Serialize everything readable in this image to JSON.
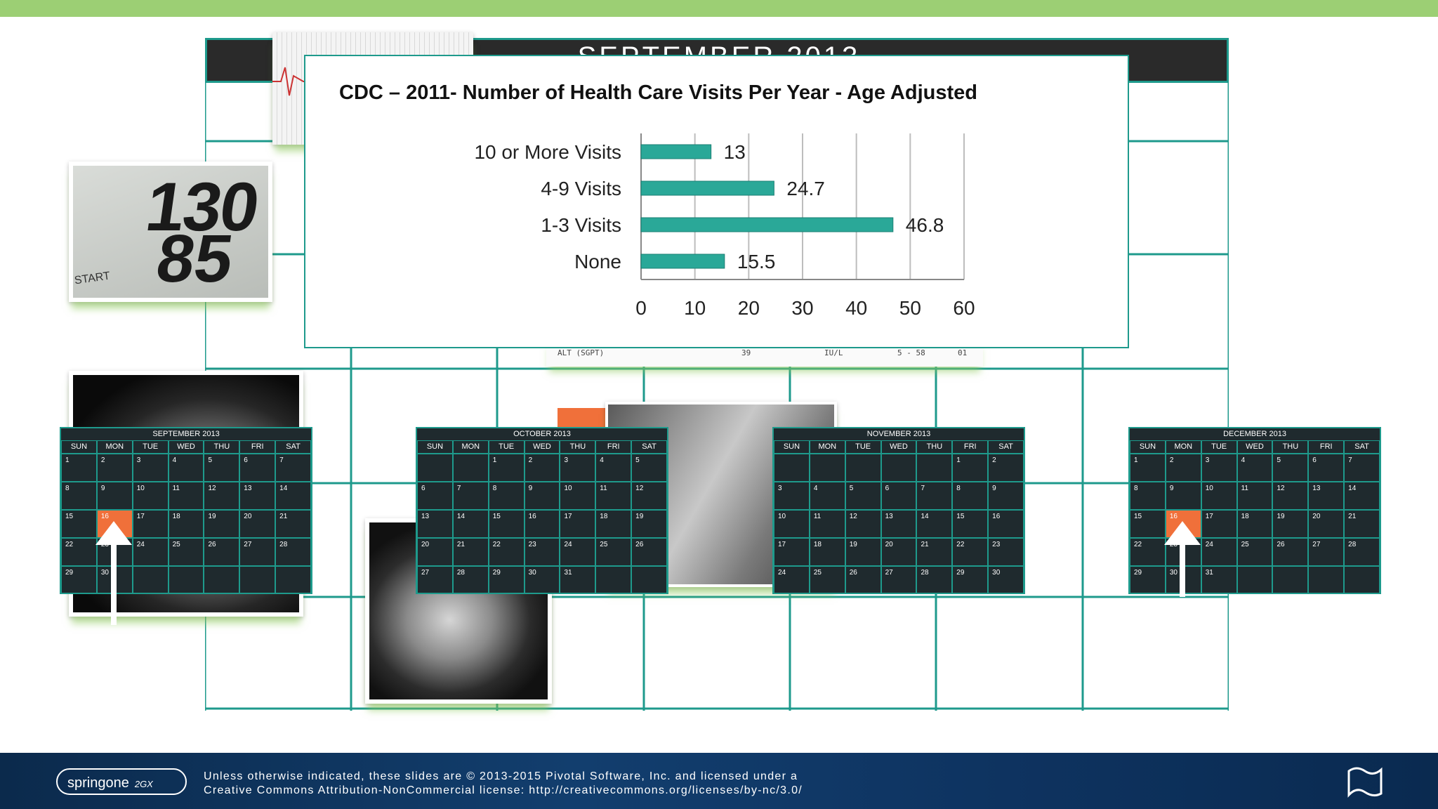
{
  "background_calendar": {
    "title": "SEPTEMBER 2013",
    "highlight_day": "16"
  },
  "chart_data": {
    "type": "bar",
    "orientation": "horizontal",
    "title": "CDC – 2011- Number of Health Care Visits Per Year - Age Adjusted",
    "categories": [
      "10 or More Visits",
      "4-9 Visits",
      "1-3 Visits",
      "None"
    ],
    "values": [
      13,
      24.7,
      46.8,
      15.5
    ],
    "value_labels": [
      "13",
      "24.7",
      "46.8",
      "15.5"
    ],
    "xlim": [
      0,
      60
    ],
    "x_ticks": [
      "0",
      "10",
      "20",
      "30",
      "40",
      "50",
      "60"
    ],
    "bar_color": "#2aa898",
    "grid": true
  },
  "photos": {
    "bp_systolic": "130",
    "bp_diastolic": "85",
    "bp_label": "START"
  },
  "lab_sheet": {
    "row": [
      "ALT (SGPT)",
      "39",
      "IU/L",
      "5 - 58",
      "01"
    ]
  },
  "mini_calendars": [
    {
      "title": "SEPTEMBER 2013",
      "days": [
        "SUN",
        "MON",
        "TUE",
        "WED",
        "THU",
        "FRI",
        "SAT"
      ],
      "rows": [
        [
          "1",
          "2",
          "3",
          "4",
          "5",
          "6",
          "7"
        ],
        [
          "8",
          "9",
          "10",
          "11",
          "12",
          "13",
          "14"
        ],
        [
          "15",
          "16",
          "17",
          "18",
          "19",
          "20",
          "21"
        ],
        [
          "22",
          "23",
          "24",
          "25",
          "26",
          "27",
          "28"
        ],
        [
          "29",
          "30",
          "",
          "",
          "",
          "",
          ""
        ]
      ],
      "highlight": "16"
    },
    {
      "title": "OCTOBER 2013",
      "days": [
        "SUN",
        "MON",
        "TUE",
        "WED",
        "THU",
        "FRI",
        "SAT"
      ],
      "rows": [
        [
          "",
          "",
          "1",
          "2",
          "3",
          "4",
          "5"
        ],
        [
          "6",
          "7",
          "8",
          "9",
          "10",
          "11",
          "12"
        ],
        [
          "13",
          "14",
          "15",
          "16",
          "17",
          "18",
          "19"
        ],
        [
          "20",
          "21",
          "22",
          "23",
          "24",
          "25",
          "26"
        ],
        [
          "27",
          "28",
          "29",
          "30",
          "31",
          "",
          ""
        ]
      ],
      "highlight": ""
    },
    {
      "title": "NOVEMBER 2013",
      "days": [
        "SUN",
        "MON",
        "TUE",
        "WED",
        "THU",
        "FRI",
        "SAT"
      ],
      "rows": [
        [
          "",
          "",
          "",
          "",
          "",
          "1",
          "2"
        ],
        [
          "3",
          "4",
          "5",
          "6",
          "7",
          "8",
          "9"
        ],
        [
          "10",
          "11",
          "12",
          "13",
          "14",
          "15",
          "16"
        ],
        [
          "17",
          "18",
          "19",
          "20",
          "21",
          "22",
          "23"
        ],
        [
          "24",
          "25",
          "26",
          "27",
          "28",
          "29",
          "30"
        ]
      ],
      "highlight": ""
    },
    {
      "title": "DECEMBER 2013",
      "days": [
        "SUN",
        "MON",
        "TUE",
        "WED",
        "THU",
        "FRI",
        "SAT"
      ],
      "rows": [
        [
          "1",
          "2",
          "3",
          "4",
          "5",
          "6",
          "7"
        ],
        [
          "8",
          "9",
          "10",
          "11",
          "12",
          "13",
          "14"
        ],
        [
          "15",
          "16",
          "17",
          "18",
          "19",
          "20",
          "21"
        ],
        [
          "22",
          "23",
          "24",
          "25",
          "26",
          "27",
          "28"
        ],
        [
          "29",
          "30",
          "31",
          "",
          "",
          "",
          ""
        ]
      ],
      "highlight": "16"
    }
  ],
  "footer": {
    "logo_text": "springone",
    "logo_sub": "2GX",
    "license_line1": "Unless otherwise indicated, these slides are © 2013-2015 Pivotal Software, Inc. and licensed under a",
    "license_line2": "Creative Commons Attribution-NonCommercial license: http://creativecommons.org/licenses/by-nc/3.0/"
  },
  "colors": {
    "teal": "#1e9a8c",
    "orange": "#f0703a",
    "green_bar": "#9ccf74",
    "footer_blue": "#0e3360"
  }
}
